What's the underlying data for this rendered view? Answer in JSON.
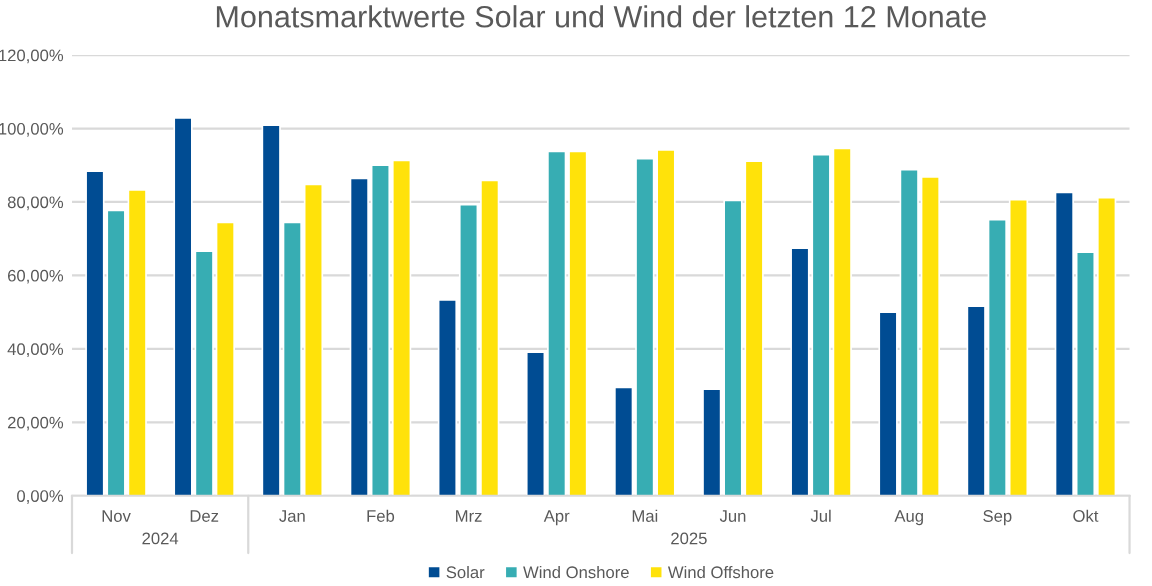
{
  "chart_data": {
    "type": "bar",
    "title": "Monatsmarktwerte Solar und Wind der letzten 12 Monate",
    "categories": [
      "Nov",
      "Dez",
      "Jan",
      "Feb",
      "Mrz",
      "Apr",
      "Mai",
      "Jun",
      "Jul",
      "Aug",
      "Sep",
      "Okt"
    ],
    "series": [
      {
        "name": "Solar",
        "color": "#004c93",
        "values": [
          88.4,
          102.9,
          100.9,
          86.4,
          53.3,
          39.1,
          29.5,
          29.0,
          67.4,
          50.0,
          51.6,
          82.6
        ]
      },
      {
        "name": "Wind Onshore",
        "color": "#37adb3",
        "values": [
          77.7,
          66.6,
          74.4,
          90.0,
          79.3,
          93.8,
          91.8,
          80.4,
          92.9,
          88.8,
          75.2,
          66.3
        ]
      },
      {
        "name": "Wind Offshore",
        "color": "#ffe20a",
        "values": [
          83.3,
          74.4,
          84.8,
          91.3,
          85.9,
          93.8,
          94.2,
          91.1,
          94.6,
          86.8,
          80.6,
          81.2
        ]
      }
    ],
    "ylim": [
      0,
      120
    ],
    "yticks": [
      {
        "value": 0,
        "label": "0,00%"
      },
      {
        "value": 20,
        "label": "20,00%"
      },
      {
        "value": 40,
        "label": "40,00%"
      },
      {
        "value": 60,
        "label": "60,00%"
      },
      {
        "value": 80,
        "label": "80,00%"
      },
      {
        "value": 100,
        "label": "100,00%"
      },
      {
        "value": 120,
        "label": "120,00%"
      }
    ],
    "grid": "y",
    "legend": "bottom",
    "annotations": [
      "2024",
      "2025"
    ]
  }
}
